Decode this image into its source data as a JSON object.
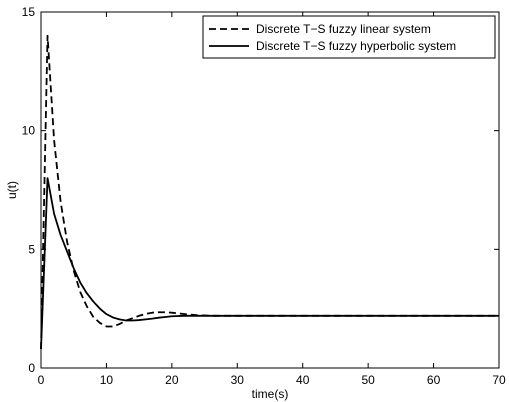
{
  "chart_data": {
    "type": "line",
    "title": "",
    "xlabel": "time(s)",
    "ylabel": "u(t)",
    "xlim": [
      0,
      70
    ],
    "ylim": [
      0,
      15
    ],
    "xticks": [
      "0",
      "10",
      "20",
      "30",
      "40",
      "50",
      "60",
      "70"
    ],
    "yticks": [
      "0",
      "5",
      "10",
      "15"
    ],
    "grid": false,
    "legend_position": "top-right",
    "series": [
      {
        "name": "Discrete T−S fuzzy linear system",
        "style": "dashed",
        "color": "#000000",
        "x": [
          0,
          1,
          2,
          3,
          4,
          5,
          6,
          7,
          8,
          9,
          10,
          11,
          12,
          13,
          14,
          15,
          16,
          17,
          18,
          19,
          20,
          21,
          22,
          24,
          26,
          28,
          30,
          35,
          40,
          50,
          60,
          70
        ],
        "y": [
          0.8,
          14.0,
          9.6,
          7.0,
          5.3,
          4.1,
          3.2,
          2.6,
          2.15,
          1.9,
          1.75,
          1.75,
          1.85,
          2.0,
          2.1,
          2.2,
          2.28,
          2.33,
          2.35,
          2.35,
          2.33,
          2.3,
          2.27,
          2.22,
          2.2,
          2.2,
          2.2,
          2.2,
          2.2,
          2.2,
          2.2,
          2.2
        ]
      },
      {
        "name": "Discrete T−S fuzzy hyperbolic system",
        "style": "solid",
        "color": "#000000",
        "x": [
          0,
          1,
          2,
          3,
          4,
          5,
          6,
          7,
          8,
          9,
          10,
          11,
          12,
          13,
          14,
          15,
          16,
          17,
          18,
          19,
          20,
          22,
          24,
          26,
          28,
          30,
          35,
          40,
          50,
          60,
          70
        ],
        "y": [
          0.8,
          8.0,
          6.5,
          5.6,
          4.9,
          4.2,
          3.6,
          3.15,
          2.8,
          2.5,
          2.27,
          2.13,
          2.05,
          2.0,
          2.0,
          2.02,
          2.05,
          2.08,
          2.12,
          2.15,
          2.18,
          2.2,
          2.2,
          2.2,
          2.2,
          2.2,
          2.2,
          2.2,
          2.2,
          2.2,
          2.2
        ]
      }
    ]
  }
}
